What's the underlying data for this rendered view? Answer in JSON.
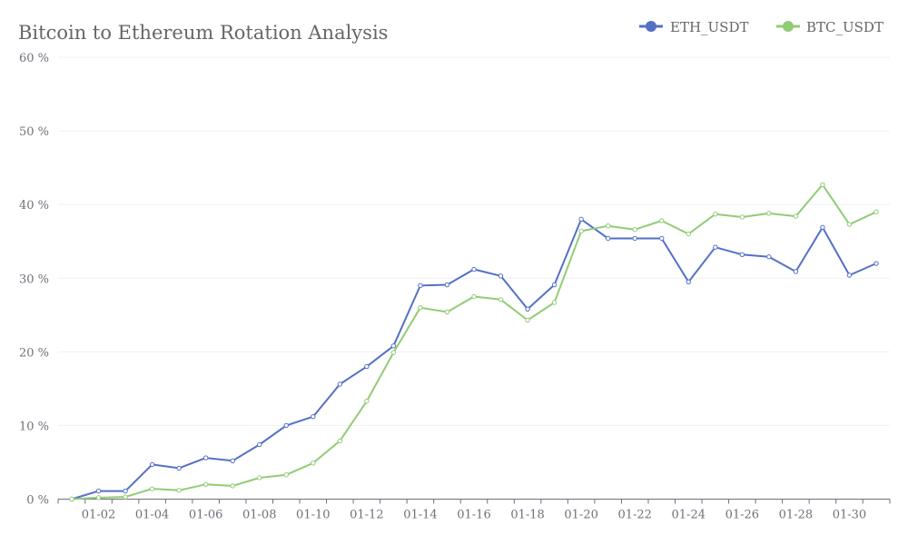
{
  "chart_data": {
    "type": "line",
    "title": "Bitcoin to Ethereum Rotation Analysis",
    "xlabel": "",
    "ylabel": "",
    "ylim": [
      0,
      60
    ],
    "y_ticks": [
      {
        "value": 0,
        "label": "0 %"
      },
      {
        "value": 10,
        "label": "10 %"
      },
      {
        "value": 20,
        "label": "20 %"
      },
      {
        "value": 30,
        "label": "30 %"
      },
      {
        "value": 40,
        "label": "40 %"
      },
      {
        "value": 50,
        "label": "50 %"
      },
      {
        "value": 60,
        "label": "60 %"
      }
    ],
    "x_tick_labels": [
      "01-02",
      "01-04",
      "01-06",
      "01-08",
      "01-10",
      "01-12",
      "01-14",
      "01-16",
      "01-18",
      "01-20",
      "01-22",
      "01-24",
      "01-26",
      "01-28",
      "01-30"
    ],
    "x": [
      "01-01",
      "01-02",
      "01-03",
      "01-04",
      "01-05",
      "01-06",
      "01-07",
      "01-08",
      "01-09",
      "01-10",
      "01-11",
      "01-12",
      "01-13",
      "01-14",
      "01-15",
      "01-16",
      "01-17",
      "01-18",
      "01-19",
      "01-20",
      "01-21",
      "01-22",
      "01-23",
      "01-24",
      "01-25",
      "01-26",
      "01-27",
      "01-28",
      "01-29",
      "01-30",
      "01-31"
    ],
    "grid": true,
    "legend_position": "top-right",
    "series": [
      {
        "name": "ETH_USDT",
        "color": "#5470c6",
        "values": [
          0,
          1.1,
          1.1,
          4.7,
          4.2,
          5.6,
          5.2,
          7.4,
          10.0,
          11.2,
          15.6,
          18.0,
          20.8,
          29.0,
          29.1,
          31.2,
          30.3,
          25.8,
          29.1,
          38.0,
          35.4,
          35.4,
          35.4,
          29.5,
          34.2,
          33.2,
          32.9,
          30.9,
          36.9,
          30.4,
          32.0
        ]
      },
      {
        "name": "BTC_USDT",
        "color": "#91cc75",
        "values": [
          0,
          0.2,
          0.3,
          1.4,
          1.2,
          2.0,
          1.8,
          2.9,
          3.3,
          4.9,
          7.9,
          13.3,
          19.9,
          26.0,
          25.4,
          27.5,
          27.1,
          24.3,
          26.7,
          36.4,
          37.1,
          36.6,
          37.8,
          36.0,
          38.7,
          38.3,
          38.8,
          38.4,
          42.7,
          37.3,
          39.0
        ]
      }
    ]
  }
}
